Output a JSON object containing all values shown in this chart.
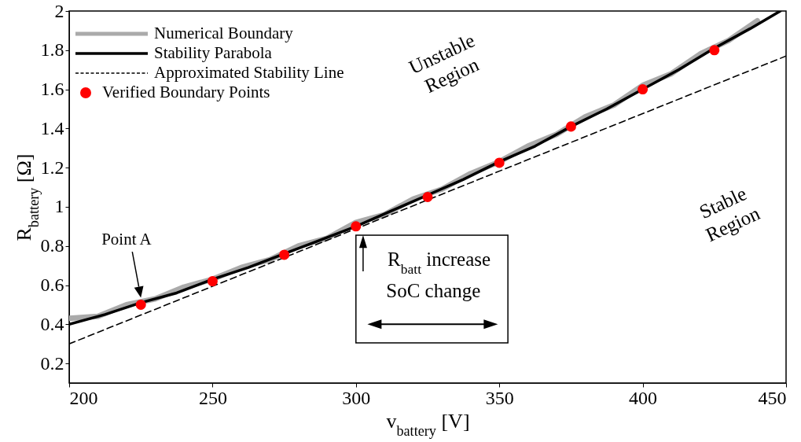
{
  "chart_data": {
    "type": "line",
    "xlabel": "v$_{battery}$ [V]",
    "ylabel": "R$_{battery}$ [Ω]",
    "xlim": [
      200,
      450
    ],
    "xticks": [
      200,
      250,
      300,
      350,
      400,
      450
    ],
    "ylim": [
      0.1,
      2
    ],
    "yticks": [
      0.2,
      0.4,
      0.6,
      0.8,
      1,
      1.2,
      1.4,
      1.6,
      1.8,
      2
    ],
    "grid": false,
    "legend": "top left",
    "series": [
      {
        "name": "Numerical Boundary",
        "color": "#aaaaaa",
        "type": "line",
        "line_style": "solid",
        "x": [
          200,
          210,
          220,
          230,
          240,
          250,
          260,
          270,
          280,
          290,
          300,
          310,
          320,
          330,
          340,
          350,
          360,
          370,
          380,
          390,
          400,
          410,
          420,
          430,
          440
        ],
        "values": [
          0.43,
          0.44,
          0.5,
          0.53,
          0.59,
          0.63,
          0.69,
          0.73,
          0.8,
          0.84,
          0.92,
          0.96,
          1.04,
          1.09,
          1.17,
          1.23,
          1.31,
          1.37,
          1.46,
          1.52,
          1.62,
          1.68,
          1.78,
          1.85,
          1.95
        ]
      },
      {
        "name": "Stability Parabola",
        "color": "#000000",
        "type": "line",
        "line_style": "solid",
        "x": [
          200,
          212.5,
          225,
          237.5,
          250,
          262.5,
          275,
          287.5,
          300,
          312.5,
          325,
          337.5,
          350,
          362.5,
          375,
          387.5,
          400,
          412.5,
          425,
          437.5,
          448
        ],
        "values": [
          0.4,
          0.45,
          0.51,
          0.56,
          0.63,
          0.69,
          0.76,
          0.83,
          0.9,
          0.98,
          1.06,
          1.14,
          1.23,
          1.31,
          1.41,
          1.5,
          1.6,
          1.7,
          1.81,
          1.91,
          2.0
        ]
      },
      {
        "name": "Approximated Stability Line",
        "color": "#000000",
        "type": "line",
        "line_style": "dashed",
        "x": [
          200,
          450
        ],
        "values": [
          0.3,
          1.77
        ]
      },
      {
        "name": "Verified Boundary Points",
        "color": "#ff0000",
        "type": "scatter",
        "marker": "circle",
        "x": [
          225,
          250,
          275,
          300,
          325,
          350,
          375,
          400,
          425
        ],
        "values": [
          0.5,
          0.62,
          0.755,
          0.9,
          1.05,
          1.225,
          1.41,
          1.6,
          1.8
        ]
      }
    ],
    "annotations": [
      "Point A",
      "Unstable Region",
      "Stable Region",
      "R$_{batt}$ increase",
      "SoC change"
    ]
  }
}
